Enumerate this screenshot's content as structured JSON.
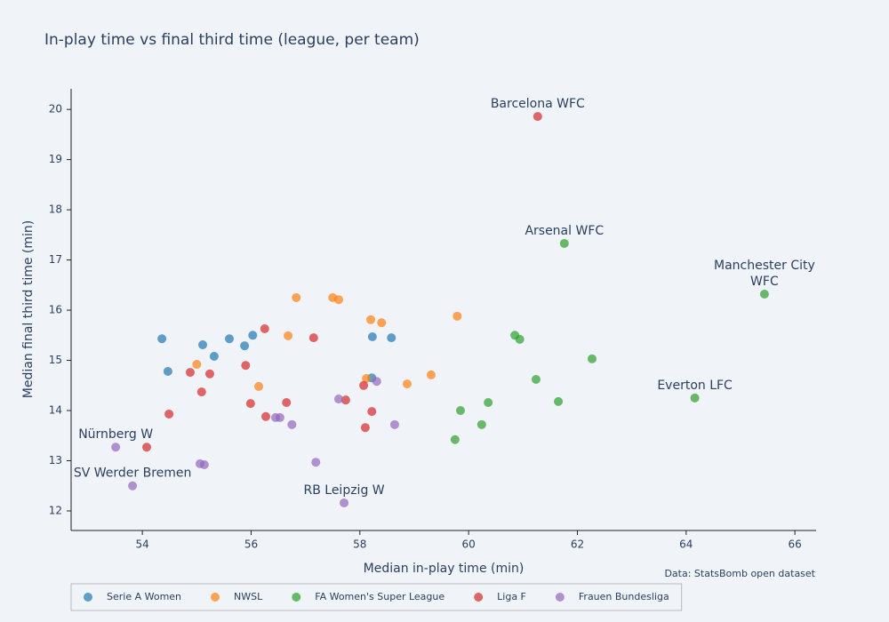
{
  "chart_data": {
    "type": "scatter",
    "title": "In-play time vs final third time (league, per team)",
    "x_label": "Median in-play time (min)",
    "y_label": "Median final third time (min)",
    "source": "Data: StatsBomb open dataset",
    "xlim": [
      52.69,
      66.39
    ],
    "ylim": [
      11.61,
      20.41
    ],
    "xticks": [
      54,
      56,
      58,
      60,
      62,
      64,
      66
    ],
    "yticks": [
      12,
      13,
      14,
      15,
      16,
      17,
      18,
      19,
      20
    ],
    "legend": "bottom",
    "series": [
      {
        "name": "Serie A Women",
        "color": "#1f77b4",
        "x": [
          54.36,
          54.47,
          55.11,
          55.32,
          55.6,
          55.88,
          56.03,
          58.23,
          58.22,
          58.58
        ],
        "values": [
          15.43,
          14.78,
          15.31,
          15.08,
          15.43,
          15.29,
          15.5,
          15.47,
          14.65,
          15.45
        ]
      },
      {
        "name": "NWSL",
        "color": "#ff7f0e",
        "x": [
          55.0,
          56.14,
          56.68,
          56.83,
          57.5,
          57.61,
          58.2,
          58.4,
          58.12,
          58.87,
          59.31,
          59.79
        ],
        "values": [
          14.92,
          14.48,
          15.49,
          16.25,
          16.25,
          16.21,
          15.81,
          15.75,
          14.64,
          14.53,
          14.71,
          15.88
        ]
      },
      {
        "name": "FA Women's Super League",
        "color": "#2ca02c",
        "x": [
          61.76,
          65.44,
          60.85,
          60.94,
          62.27,
          61.24,
          61.65,
          64.16,
          59.85,
          60.36,
          60.24,
          59.75
        ],
        "values": [
          17.33,
          16.32,
          15.5,
          15.42,
          15.03,
          14.62,
          14.18,
          14.25,
          14.0,
          14.16,
          13.72,
          13.42
        ]
      },
      {
        "name": "Liga F",
        "color": "#d62728",
        "x": [
          61.27,
          56.25,
          57.15,
          55.9,
          54.88,
          55.24,
          55.09,
          54.49,
          55.99,
          56.27,
          56.65,
          57.74,
          58.07,
          58.22,
          58.1,
          54.08
        ],
        "values": [
          19.86,
          15.63,
          15.45,
          14.9,
          14.76,
          14.73,
          14.37,
          13.93,
          14.14,
          13.88,
          14.16,
          14.21,
          14.5,
          13.98,
          13.66,
          13.27
        ]
      },
      {
        "name": "Frauen Bundesliga",
        "color": "#9467bd",
        "x": [
          53.51,
          53.82,
          55.06,
          55.14,
          56.45,
          56.53,
          56.75,
          57.19,
          57.61,
          58.31,
          58.64,
          57.71
        ],
        "values": [
          13.27,
          12.5,
          12.94,
          12.92,
          13.86,
          13.86,
          13.72,
          12.97,
          14.23,
          14.58,
          13.72,
          12.16
        ]
      }
    ],
    "annotations": [
      {
        "lines": [
          "Barcelona WFC"
        ],
        "x": 61.27,
        "y": 19.86
      },
      {
        "lines": [
          "Arsenal WFC"
        ],
        "x": 61.76,
        "y": 17.33
      },
      {
        "lines": [
          "Manchester City",
          "WFC"
        ],
        "x": 65.44,
        "y": 16.32
      },
      {
        "lines": [
          "Everton LFC"
        ],
        "x": 64.16,
        "y": 14.25
      },
      {
        "lines": [
          "Nürnberg W"
        ],
        "x": 53.51,
        "y": 13.27
      },
      {
        "lines": [
          "SV Werder Bremen"
        ],
        "x": 53.82,
        "y": 12.5
      },
      {
        "lines": [
          "RB Leipzig W"
        ],
        "x": 57.71,
        "y": 12.16
      }
    ]
  }
}
